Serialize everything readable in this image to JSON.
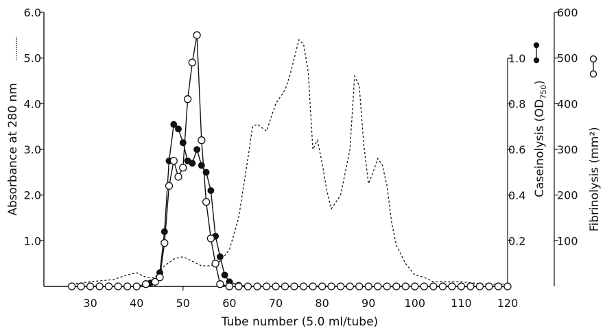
{
  "chart_data": {
    "type": "line",
    "xlabel": "Tube number (5.0 ml/tube)",
    "ylabel_left": "Absorbance at 280 nm",
    "ylabel_right1": "Caseinolysis (OD",
    "ylabel_right1_sub": "750",
    "ylabel_right1_close": ")",
    "ylabel_right2": "Fibrinolysis (mm²)",
    "xlim": [
      20,
      120
    ],
    "ylim_left": [
      0,
      6.0
    ],
    "ylim_right1": [
      0,
      1.0
    ],
    "ylim_right2": [
      0,
      600
    ],
    "xticks": [
      "30",
      "40",
      "50",
      "60",
      "70",
      "80",
      "90",
      "100",
      "110",
      "120"
    ],
    "yticks_left": [
      "1.0",
      "2.0",
      "3.0",
      "4.0",
      "5.0",
      "6.0"
    ],
    "yticks_right1": [
      "0.2",
      "0.4",
      "0.6",
      "0.8",
      "1.0"
    ],
    "yticks_right2": [
      "100",
      "200",
      "300",
      "400",
      "500",
      "600"
    ],
    "series": [
      {
        "style": "dashed",
        "axis": "left",
        "x": [
          26,
          30,
          35,
          38,
          40,
          42,
          44,
          46,
          48,
          50,
          52,
          54,
          56,
          58,
          60,
          62,
          64,
          65,
          66,
          68,
          70,
          72,
          73,
          74,
          75,
          76,
          77,
          78,
          79,
          80,
          81,
          82,
          84,
          86,
          87,
          88,
          89,
          90,
          91,
          92,
          93,
          94,
          95,
          96,
          98,
          100,
          102,
          104,
          106,
          110,
          112,
          115,
          120
        ],
        "y": [
          0.05,
          0.1,
          0.15,
          0.25,
          0.3,
          0.2,
          0.2,
          0.45,
          0.6,
          0.65,
          0.55,
          0.45,
          0.45,
          0.55,
          0.8,
          1.5,
          2.8,
          3.5,
          3.55,
          3.4,
          4.0,
          4.3,
          4.6,
          5.0,
          5.4,
          5.3,
          4.7,
          3.0,
          3.2,
          2.7,
          2.1,
          1.7,
          2.0,
          3.0,
          4.6,
          4.4,
          3.1,
          2.25,
          2.5,
          2.8,
          2.65,
          2.2,
          1.4,
          0.9,
          0.5,
          0.25,
          0.2,
          0.1,
          0.1,
          0.1,
          0.08,
          0.05,
          0.05
        ]
      },
      {
        "style": "filled-circles",
        "axis": "right1",
        "x": [
          26,
          28,
          30,
          32,
          34,
          36,
          38,
          40,
          42,
          43,
          44,
          45,
          46,
          47,
          48,
          49,
          50,
          51,
          52,
          53,
          54,
          55,
          56,
          57,
          58,
          59,
          60,
          62,
          64,
          66,
          68,
          70,
          72,
          74,
          76,
          78,
          80,
          82,
          84,
          86,
          88,
          90,
          92,
          94,
          96,
          98,
          100,
          102,
          104,
          106,
          108,
          110,
          112,
          114,
          116,
          118,
          120
        ],
        "y": [
          0.0,
          0.0,
          0.0,
          0.0,
          0.0,
          0.0,
          0.0,
          0.0,
          0.01,
          0.015,
          0.02,
          0.06,
          0.24,
          0.55,
          0.71,
          0.69,
          0.63,
          0.55,
          0.54,
          0.6,
          0.53,
          0.5,
          0.42,
          0.22,
          0.13,
          0.05,
          0.02,
          0.005,
          0.0,
          0.0,
          0.0,
          0.0,
          0.0,
          0.0,
          0.0,
          0.0,
          0.0,
          0.0,
          0.0,
          0.0,
          0.0,
          0.0,
          0.0,
          0.0,
          0.0,
          0.0,
          0.0,
          0.0,
          0.0,
          0.0,
          0.0,
          0.0,
          0.0,
          0.0,
          0.0,
          0.0,
          0.0
        ]
      },
      {
        "style": "open-circles",
        "axis": "right2",
        "x": [
          26,
          28,
          30,
          32,
          34,
          36,
          38,
          40,
          42,
          44,
          45,
          46,
          47,
          48,
          49,
          50,
          51,
          52,
          53,
          54,
          55,
          56,
          57,
          58,
          60,
          62,
          64,
          66,
          68,
          70,
          72,
          74,
          76,
          78,
          80,
          82,
          84,
          86,
          88,
          90,
          92,
          94,
          96,
          98,
          100,
          102,
          104,
          106,
          108,
          110,
          112,
          114,
          116,
          118,
          120
        ],
        "y": [
          0,
          0,
          0,
          0,
          0,
          0,
          0,
          0,
          5,
          10,
          20,
          95,
          220,
          275,
          240,
          260,
          410,
          490,
          550,
          320,
          185,
          105,
          50,
          5,
          0,
          0,
          0,
          0,
          0,
          0,
          0,
          0,
          0,
          0,
          0,
          0,
          0,
          0,
          0,
          0,
          0,
          0,
          0,
          0,
          0,
          0,
          0,
          0,
          0,
          0,
          0,
          0,
          0,
          0,
          0
        ]
      }
    ]
  }
}
